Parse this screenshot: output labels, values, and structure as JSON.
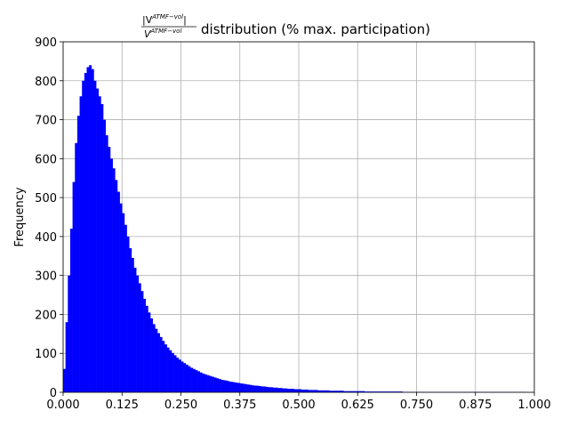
{
  "chart_data": {
    "type": "histogram",
    "title": {
      "numerator": "|V",
      "numerator_sup": "ATMF−vol",
      "numerator_end": "|",
      "denominator": "V",
      "denominator_sup": "ATMF−vol",
      "text": "distribution (% max. participation)"
    },
    "ylabel": "Frequency",
    "color": "#0000ff",
    "grid": true,
    "xlim": [
      0,
      1
    ],
    "ylim": [
      0,
      900
    ],
    "xticks": [
      {
        "value": 0,
        "label": "0.000"
      },
      {
        "value": 0.125,
        "label": "0.125"
      },
      {
        "value": 0.25,
        "label": "0.250"
      },
      {
        "value": 0.375,
        "label": "0.375"
      },
      {
        "value": 0.5,
        "label": "0.500"
      },
      {
        "value": 0.625,
        "label": "0.625"
      },
      {
        "value": 0.75,
        "label": "0.750"
      },
      {
        "value": 0.875,
        "label": "0.875"
      },
      {
        "value": 1,
        "label": "1.000"
      }
    ],
    "yticks": [
      0,
      100,
      200,
      300,
      400,
      500,
      600,
      700,
      800,
      900
    ],
    "bins": [
      0,
      0.005,
      0.01,
      0.015,
      0.02,
      0.025,
      0.03,
      0.035,
      0.04,
      0.045,
      0.05,
      0.055,
      0.06,
      0.065,
      0.07,
      0.075,
      0.08,
      0.085,
      0.09,
      0.095,
      0.1,
      0.105,
      0.11,
      0.115,
      0.12,
      0.125,
      0.13,
      0.135,
      0.14,
      0.145,
      0.15,
      0.155,
      0.16,
      0.165,
      0.17,
      0.175,
      0.18,
      0.185,
      0.19,
      0.195,
      0.2,
      0.205,
      0.21,
      0.215,
      0.22,
      0.225,
      0.23,
      0.235,
      0.24,
      0.245,
      0.25,
      0.255,
      0.26,
      0.265,
      0.27,
      0.275,
      0.28,
      0.285,
      0.29,
      0.295,
      0.3,
      0.305,
      0.31,
      0.315,
      0.32,
      0.325,
      0.33,
      0.335,
      0.34,
      0.345,
      0.35,
      0.355,
      0.36,
      0.365,
      0.37,
      0.375,
      0.38,
      0.385,
      0.39,
      0.395,
      0.4,
      0.405,
      0.41,
      0.415,
      0.42,
      0.425,
      0.43,
      0.435,
      0.44,
      0.445,
      0.45,
      0.455,
      0.46,
      0.465,
      0.47,
      0.475,
      0.48,
      0.485,
      0.49,
      0.495,
      0.5,
      0.505,
      0.51,
      0.515,
      0.52,
      0.525,
      0.53,
      0.535,
      0.54,
      0.545,
      0.55,
      0.555,
      0.56,
      0.565,
      0.57,
      0.575,
      0.58,
      0.585,
      0.59,
      0.595,
      0.6,
      0.605,
      0.61,
      0.615,
      0.62,
      0.625,
      0.63,
      0.635,
      0.64,
      0.645,
      0.65,
      0.655,
      0.66,
      0.665,
      0.67,
      0.675,
      0.68,
      0.685,
      0.69,
      0.695,
      0.7,
      0.705,
      0.71,
      0.715,
      0.72,
      0.725,
      0.73,
      0.735,
      0.74,
      0.745,
      0.75,
      0.755,
      0.76,
      0.765,
      0.77,
      0.775,
      0.78,
      0.785,
      0.79,
      0.795,
      0.8,
      0.805,
      0.81,
      0.815,
      0.82,
      0.825,
      0.83,
      0.835,
      0.84,
      0.845,
      0.85,
      0.855,
      0.86,
      0.865,
      0.87,
      0.875,
      0.88,
      0.885,
      0.89,
      0.895,
      0.9,
      0.905,
      0.91,
      0.915,
      0.92,
      0.925,
      0.93,
      0.935,
      0.94,
      0.945,
      0.95,
      0.955,
      0.96,
      0.965,
      0.97,
      0.975,
      0.98,
      0.985,
      0.99,
      0.995,
      1
    ],
    "values": [
      60,
      180,
      300,
      420,
      540,
      640,
      710,
      760,
      800,
      820,
      835,
      840,
      830,
      800,
      780,
      760,
      740,
      700,
      660,
      630,
      600,
      575,
      545,
      515,
      485,
      460,
      430,
      400,
      370,
      345,
      320,
      300,
      280,
      260,
      240,
      222,
      205,
      190,
      175,
      163,
      152,
      142,
      132,
      123,
      115,
      108,
      101,
      95,
      89,
      84,
      79,
      75,
      71,
      67,
      63,
      60,
      57,
      54,
      51,
      48,
      46,
      44,
      42,
      40,
      38,
      36,
      34,
      32,
      31,
      30,
      28,
      27,
      26,
      25,
      24,
      23,
      22,
      21,
      20,
      19,
      18,
      17,
      17,
      16,
      15,
      15,
      14,
      13,
      13,
      12,
      12,
      11,
      11,
      10,
      10,
      9,
      9,
      9,
      8,
      8,
      8,
      7,
      7,
      7,
      6,
      6,
      6,
      6,
      5,
      5,
      5,
      5,
      5,
      4,
      4,
      4,
      4,
      4,
      4,
      3,
      3,
      3,
      3,
      3,
      3,
      3,
      3,
      3,
      2,
      2,
      2,
      2,
      2,
      2,
      2,
      2,
      2,
      2,
      2,
      2,
      2,
      2,
      2,
      2,
      1,
      1,
      1,
      1,
      1,
      1,
      1,
      1,
      1,
      1,
      1,
      1,
      1,
      1,
      1,
      1,
      1,
      1,
      1,
      1,
      1,
      1,
      1,
      1,
      1,
      1,
      1,
      1,
      1,
      1,
      1,
      1,
      1,
      1,
      1,
      1,
      1,
      1,
      1,
      1,
      1,
      1,
      1,
      1,
      1,
      1,
      1,
      1,
      1,
      1,
      1,
      1,
      0,
      0,
      0,
      0
    ]
  }
}
